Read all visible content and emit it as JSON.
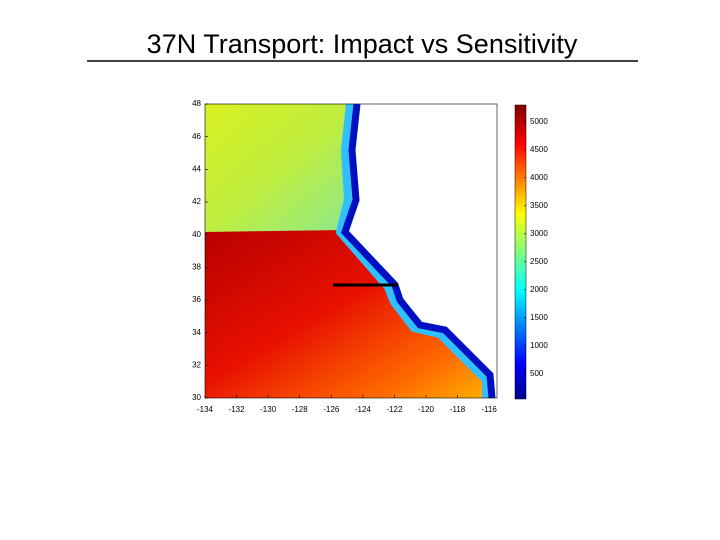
{
  "chart_data": {
    "type": "heatmap",
    "title": "37N Transport: Impact vs Sensitivity",
    "xlim": [
      -134,
      -115.5
    ],
    "xticks": [
      -134,
      -132,
      -130,
      -128,
      -126,
      -124,
      -122,
      -120,
      -118,
      -116
    ],
    "ylim": [
      30,
      48
    ],
    "yticks": [
      30,
      32,
      34,
      36,
      38,
      40,
      42,
      44,
      46,
      48
    ],
    "colormap": "jet",
    "clim": [
      50,
      5300
    ],
    "cticks": [
      500,
      1000,
      1500,
      2000,
      2500,
      3000,
      3500,
      4000,
      4500,
      5000
    ]
  }
}
